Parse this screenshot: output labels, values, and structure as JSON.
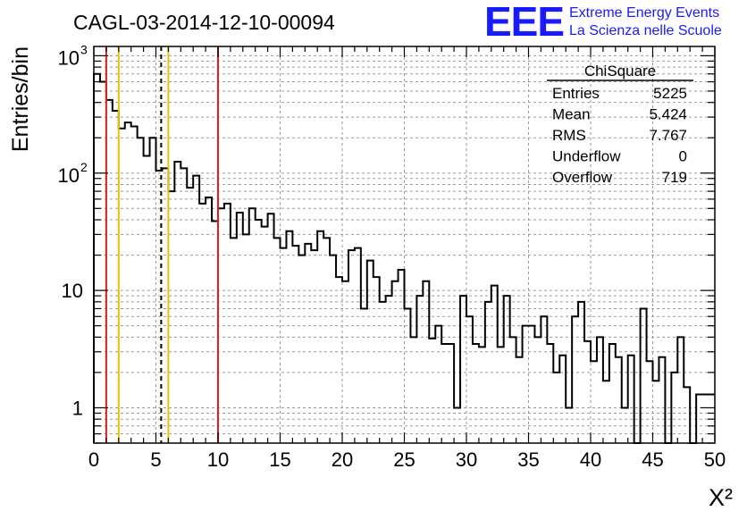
{
  "header": {
    "title": "CAGL-03-2014-12-10-00094",
    "logo_text": "EEE",
    "logo_line1": "Extreme Energy Events",
    "logo_line2": "La Scienza nelle Scuole",
    "logo_color": "#1a1aff"
  },
  "stats": {
    "title": "ChiSquare",
    "rows": [
      {
        "label": "Entries",
        "value": "5225"
      },
      {
        "label": "Mean",
        "value": "5.424"
      },
      {
        "label": "RMS",
        "value": "7.767"
      },
      {
        "label": "Underflow",
        "value": "0"
      },
      {
        "label": "Overflow",
        "value": "719"
      }
    ]
  },
  "chart_data": {
    "type": "histogram",
    "title": "CAGL-03-2014-12-10-00094",
    "xlabel": "X²",
    "ylabel": "Entries/bin",
    "xlim": [
      0,
      50
    ],
    "ylim": [
      0.5,
      1200
    ],
    "yscale": "log",
    "grid": true,
    "bin_width": 0.5,
    "x_ticks": [
      "0",
      "5",
      "10",
      "15",
      "20",
      "25",
      "30",
      "35",
      "40",
      "45",
      "50"
    ],
    "y_ticks": [
      {
        "value": 1,
        "label": "1"
      },
      {
        "value": 10,
        "label": "10"
      },
      {
        "value": 100,
        "label": "10",
        "exp": "2"
      },
      {
        "value": 1000,
        "label": "10",
        "exp": "3"
      }
    ],
    "values": [
      700,
      600,
      420,
      340,
      240,
      270,
      250,
      200,
      140,
      200,
      105,
      110,
      70,
      125,
      110,
      75,
      95,
      55,
      62,
      39,
      50,
      55,
      28,
      46,
      30,
      50,
      40,
      35,
      45,
      28,
      23,
      32,
      24,
      20,
      25,
      22,
      32,
      28,
      20,
      13,
      12,
      22,
      23,
      7,
      18,
      13,
      8,
      9,
      12,
      15,
      7,
      4,
      9,
      12,
      3.9,
      5,
      3.5,
      3.5,
      1,
      9,
      6,
      3.5,
      3.3,
      8,
      11,
      3.3,
      9,
      4,
      2.7,
      5,
      5,
      4,
      6,
      3.5,
      2,
      2.8,
      1,
      6,
      8,
      3.7,
      2.5,
      4,
      1.7,
      3.5,
      2.7,
      1,
      2.8,
      0.5,
      7,
      2.5,
      1.7,
      2.7,
      0.5,
      2,
      4,
      1.5,
      0.5,
      1.3,
      1.3,
      1.3
    ],
    "lines": [
      {
        "x": 1,
        "color": "#e02020",
        "style": "solid"
      },
      {
        "x": 2,
        "color": "#f0c000",
        "style": "solid"
      },
      {
        "x": 5.424,
        "color": "#000000",
        "style": "dashed"
      },
      {
        "x": 6,
        "color": "#f0c000",
        "style": "solid"
      },
      {
        "x": 10,
        "color": "#e02020",
        "style": "solid"
      }
    ]
  }
}
